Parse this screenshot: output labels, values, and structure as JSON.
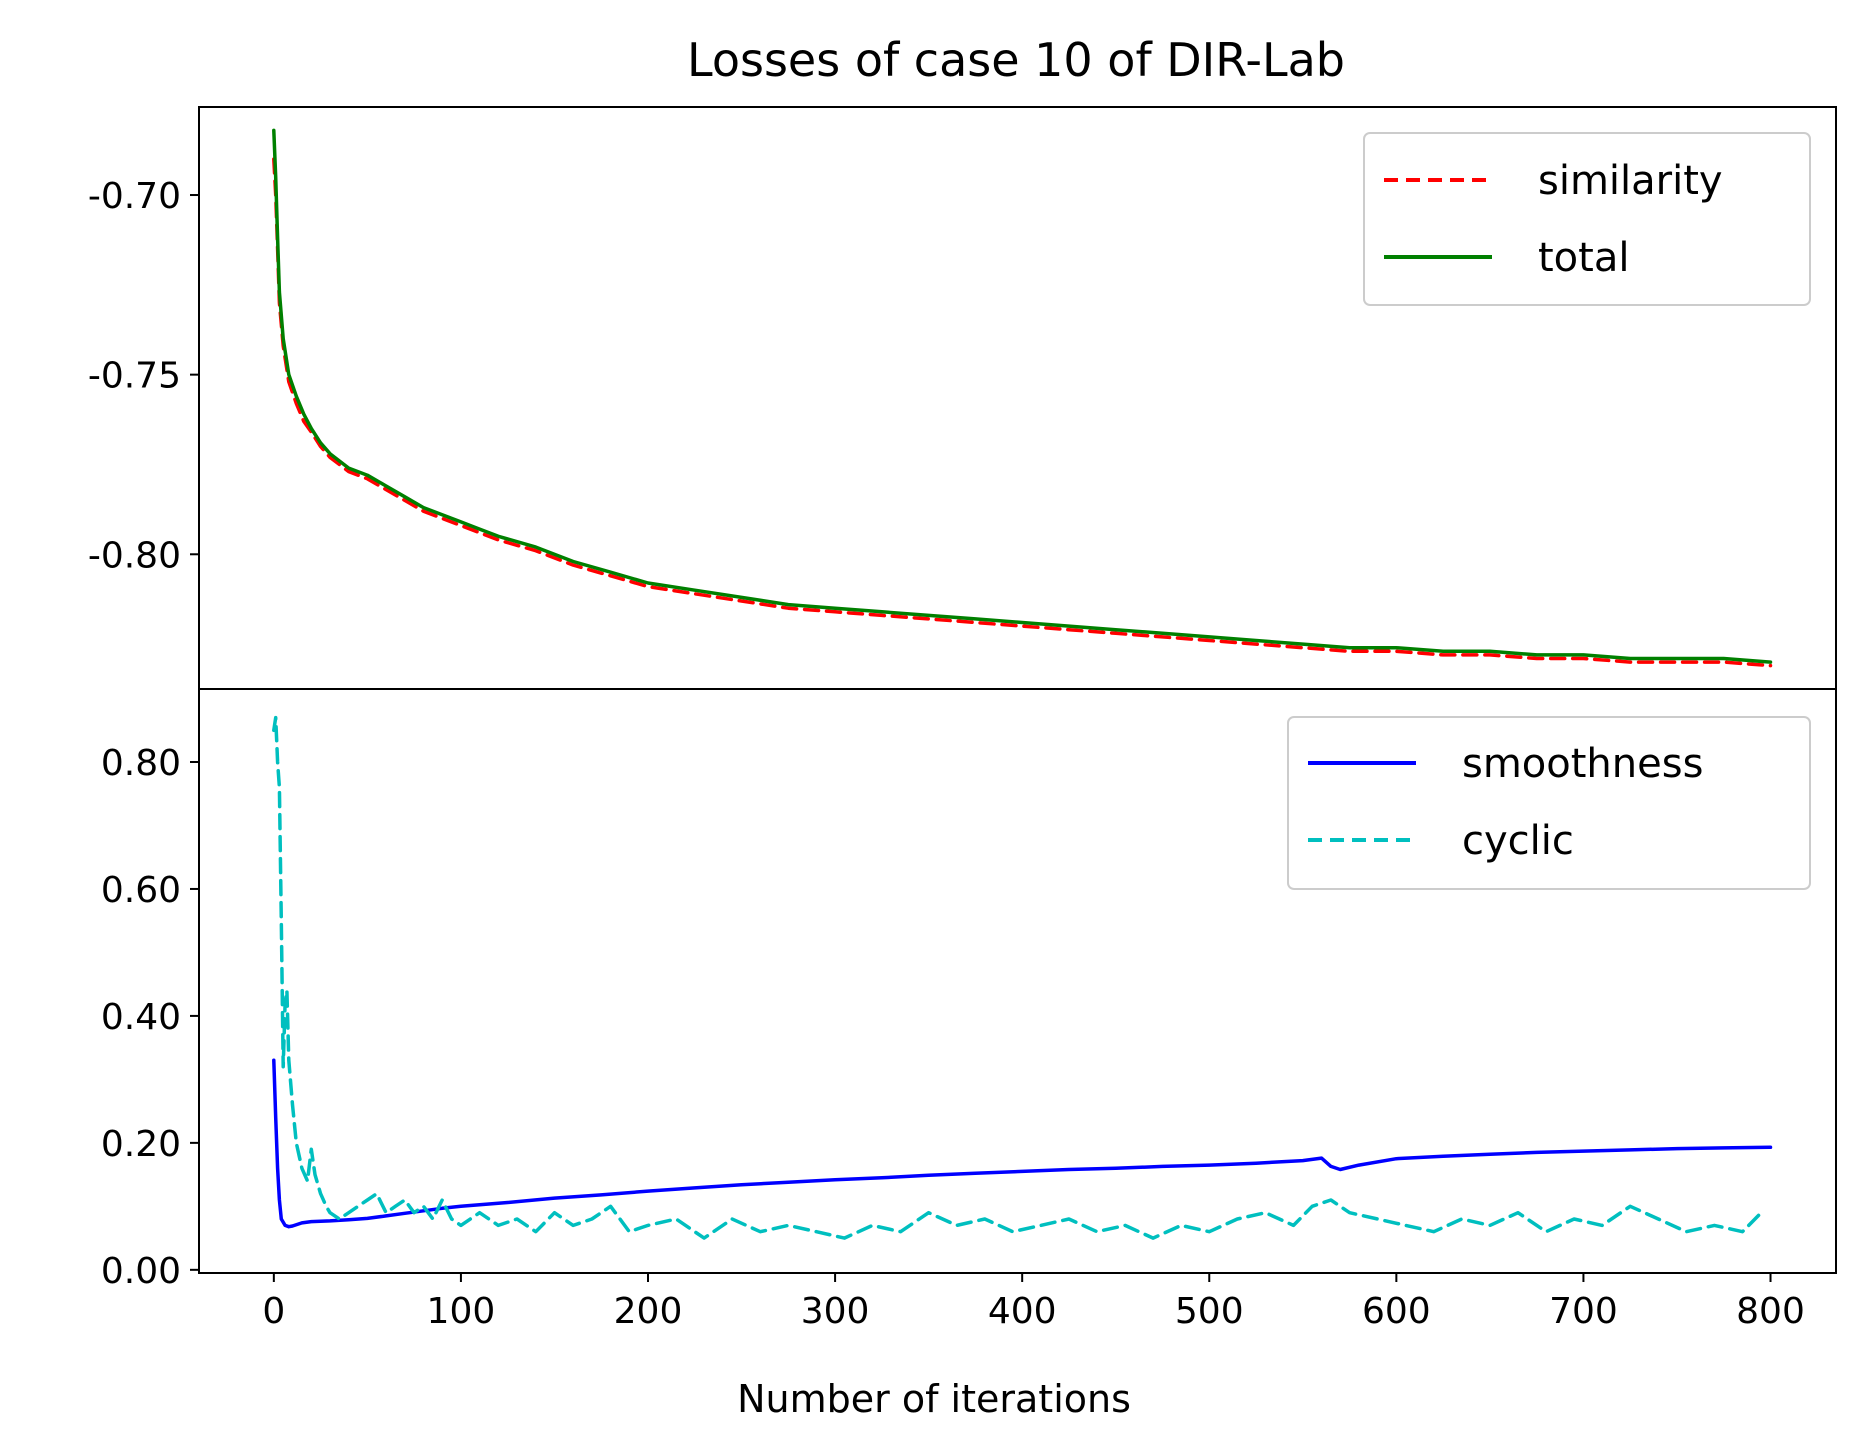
{
  "chart_data": [
    {
      "type": "line",
      "panel": "top",
      "title": "Losses of case 10 of DIR-Lab",
      "xlabel": "",
      "ylabel": "",
      "xlim": [
        -40,
        835
      ],
      "ylim": [
        -0.8375,
        -0.6755
      ],
      "yticks": [
        -0.7,
        -0.75,
        -0.8
      ],
      "ytick_labels": [
        "-0.70",
        "-0.75",
        "-0.80"
      ],
      "legend_location": "top-right",
      "series": [
        {
          "name": "similarity",
          "color": "#ff0000",
          "style": "dashed",
          "x": [
            0,
            1,
            2,
            3,
            5,
            8,
            12,
            16,
            20,
            25,
            30,
            40,
            50,
            60,
            70,
            80,
            90,
            100,
            110,
            120,
            140,
            160,
            180,
            200,
            225,
            250,
            275,
            300,
            325,
            350,
            375,
            400,
            425,
            450,
            475,
            500,
            525,
            550,
            575,
            600,
            625,
            650,
            675,
            700,
            725,
            750,
            775,
            800
          ],
          "values": [
            -0.69,
            -0.7,
            -0.715,
            -0.73,
            -0.742,
            -0.752,
            -0.758,
            -0.763,
            -0.766,
            -0.77,
            -0.773,
            -0.777,
            -0.779,
            -0.782,
            -0.785,
            -0.788,
            -0.79,
            -0.792,
            -0.794,
            -0.796,
            -0.799,
            -0.803,
            -0.806,
            -0.809,
            -0.811,
            -0.813,
            -0.815,
            -0.816,
            -0.817,
            -0.818,
            -0.819,
            -0.82,
            -0.821,
            -0.822,
            -0.823,
            -0.824,
            -0.825,
            -0.826,
            -0.827,
            -0.827,
            -0.828,
            -0.828,
            -0.829,
            -0.829,
            -0.83,
            -0.83,
            -0.83,
            -0.831
          ]
        },
        {
          "name": "total",
          "color": "#008000",
          "style": "solid",
          "x": [
            0,
            1,
            2,
            3,
            5,
            8,
            12,
            16,
            20,
            25,
            30,
            40,
            50,
            60,
            70,
            80,
            90,
            100,
            110,
            120,
            140,
            160,
            180,
            200,
            225,
            250,
            275,
            300,
            325,
            350,
            375,
            400,
            425,
            450,
            475,
            500,
            525,
            550,
            575,
            600,
            625,
            650,
            675,
            700,
            725,
            750,
            775,
            800
          ],
          "values": [
            -0.682,
            -0.695,
            -0.712,
            -0.727,
            -0.74,
            -0.75,
            -0.756,
            -0.761,
            -0.765,
            -0.769,
            -0.772,
            -0.776,
            -0.778,
            -0.781,
            -0.784,
            -0.787,
            -0.789,
            -0.791,
            -0.793,
            -0.795,
            -0.798,
            -0.802,
            -0.805,
            -0.808,
            -0.81,
            -0.812,
            -0.814,
            -0.815,
            -0.816,
            -0.817,
            -0.818,
            -0.819,
            -0.82,
            -0.821,
            -0.822,
            -0.823,
            -0.824,
            -0.825,
            -0.826,
            -0.826,
            -0.827,
            -0.827,
            -0.828,
            -0.828,
            -0.829,
            -0.829,
            -0.829,
            -0.83
          ]
        }
      ]
    },
    {
      "type": "line",
      "panel": "bottom",
      "title": "",
      "xlabel": "Number of iterations",
      "ylabel": "",
      "xlim": [
        -40,
        835
      ],
      "ylim": [
        -0.005,
        0.915
      ],
      "xticks": [
        0,
        100,
        200,
        300,
        400,
        500,
        600,
        700,
        800
      ],
      "xtick_labels": [
        "0",
        "100",
        "200",
        "300",
        "400",
        "500",
        "600",
        "700",
        "800"
      ],
      "yticks": [
        0.0,
        0.2,
        0.4,
        0.6,
        0.8
      ],
      "ytick_labels": [
        "0.00",
        "0.20",
        "0.40",
        "0.60",
        "0.80"
      ],
      "legend_location": "top-right",
      "series": [
        {
          "name": "smoothness",
          "color": "#0000ff",
          "style": "solid",
          "x": [
            0,
            1,
            2,
            3,
            4,
            6,
            8,
            10,
            15,
            20,
            30,
            40,
            50,
            60,
            70,
            80,
            90,
            100,
            125,
            150,
            175,
            200,
            225,
            250,
            275,
            300,
            325,
            350,
            375,
            400,
            425,
            450,
            475,
            500,
            525,
            550,
            560,
            565,
            570,
            580,
            600,
            625,
            650,
            675,
            700,
            725,
            750,
            775,
            800
          ],
          "values": [
            0.33,
            0.24,
            0.16,
            0.11,
            0.08,
            0.07,
            0.068,
            0.069,
            0.074,
            0.076,
            0.077,
            0.079,
            0.081,
            0.085,
            0.089,
            0.093,
            0.097,
            0.1,
            0.106,
            0.113,
            0.118,
            0.124,
            0.129,
            0.134,
            0.138,
            0.142,
            0.145,
            0.149,
            0.152,
            0.155,
            0.158,
            0.16,
            0.163,
            0.165,
            0.168,
            0.172,
            0.176,
            0.163,
            0.158,
            0.165,
            0.175,
            0.179,
            0.182,
            0.185,
            0.187,
            0.189,
            0.191,
            0.192,
            0.193
          ]
        },
        {
          "name": "cyclic",
          "color": "#00bfbf",
          "style": "dashed",
          "x": [
            0,
            1,
            2,
            3,
            4,
            5,
            6,
            7,
            8,
            10,
            12,
            15,
            18,
            20,
            22,
            25,
            28,
            30,
            35,
            40,
            45,
            50,
            55,
            60,
            65,
            70,
            75,
            80,
            85,
            90,
            95,
            100,
            110,
            120,
            130,
            140,
            150,
            160,
            170,
            180,
            190,
            200,
            215,
            230,
            245,
            260,
            275,
            290,
            305,
            320,
            335,
            350,
            365,
            380,
            395,
            410,
            425,
            440,
            455,
            470,
            485,
            500,
            515,
            530,
            545,
            555,
            565,
            575,
            590,
            605,
            620,
            635,
            650,
            665,
            680,
            695,
            710,
            725,
            740,
            755,
            770,
            785,
            795
          ],
          "values": [
            0.85,
            0.87,
            0.8,
            0.76,
            0.55,
            0.32,
            0.42,
            0.44,
            0.33,
            0.26,
            0.2,
            0.16,
            0.14,
            0.19,
            0.15,
            0.12,
            0.1,
            0.09,
            0.08,
            0.09,
            0.1,
            0.11,
            0.12,
            0.09,
            0.1,
            0.11,
            0.09,
            0.1,
            0.08,
            0.11,
            0.08,
            0.07,
            0.09,
            0.07,
            0.08,
            0.06,
            0.09,
            0.07,
            0.08,
            0.1,
            0.06,
            0.07,
            0.08,
            0.05,
            0.08,
            0.06,
            0.07,
            0.06,
            0.05,
            0.07,
            0.06,
            0.09,
            0.07,
            0.08,
            0.06,
            0.07,
            0.08,
            0.06,
            0.07,
            0.05,
            0.07,
            0.06,
            0.08,
            0.09,
            0.07,
            0.1,
            0.11,
            0.09,
            0.08,
            0.07,
            0.06,
            0.08,
            0.07,
            0.09,
            0.06,
            0.08,
            0.07,
            0.1,
            0.08,
            0.06,
            0.07,
            0.06,
            0.09
          ]
        }
      ]
    }
  ]
}
